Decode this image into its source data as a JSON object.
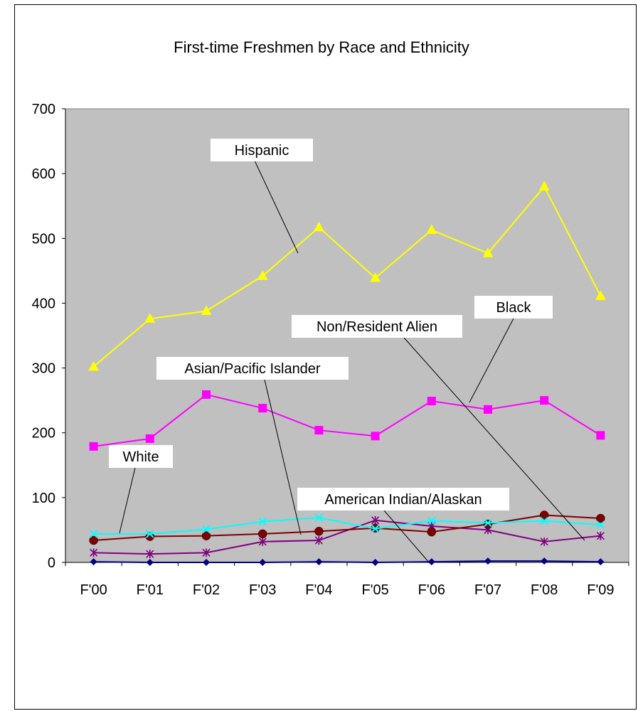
{
  "chart_data": {
    "type": "line",
    "title": "First-time Freshmen by Race and Ethnicity",
    "xlabel": "",
    "ylabel": "",
    "ylim": [
      0,
      700
    ],
    "yticks": [
      "0",
      "100",
      "200",
      "300",
      "400",
      "500",
      "600",
      "700"
    ],
    "categories": [
      "F'00",
      "F'01",
      "F'02",
      "F'03",
      "F'04",
      "F'05",
      "F'06",
      "F'07",
      "F'08",
      "F'09"
    ],
    "grid": false,
    "plot_background": "#c0c0c0",
    "series": [
      {
        "name": "Hispanic",
        "color": "#ffff00",
        "marker": "triangle",
        "values": [
          302,
          376,
          388,
          442,
          517,
          439,
          513,
          477,
          580,
          411
        ]
      },
      {
        "name": "Black",
        "color": "#ff00ff",
        "marker": "square",
        "values": [
          179,
          191,
          259,
          238,
          204,
          195,
          249,
          236,
          250,
          196
        ]
      },
      {
        "name": "White",
        "color": "#00ffff",
        "marker": "x",
        "values": [
          44,
          44,
          51,
          63,
          69,
          52,
          64,
          61,
          64,
          58
        ]
      },
      {
        "name": "Asian/Pacific Islander",
        "color": "#800000",
        "marker": "circle",
        "values": [
          34,
          40,
          41,
          44,
          48,
          53,
          47,
          59,
          73,
          68
        ]
      },
      {
        "name": "Non/Resident Alien",
        "color": "#800080",
        "marker": "star",
        "values": [
          15,
          13,
          15,
          32,
          34,
          65,
          56,
          50,
          32,
          41
        ]
      },
      {
        "name": "American Indian/Alaskan",
        "color": "#000080",
        "marker": "diamond",
        "values": [
          1,
          0,
          0,
          0,
          1,
          0,
          1,
          2,
          2,
          1
        ]
      }
    ],
    "annotations": [
      {
        "text": "Hispanic"
      },
      {
        "text": "Black"
      },
      {
        "text": "Non/Resident Alien"
      },
      {
        "text": "Asian/Pacific Islander"
      },
      {
        "text": "White"
      },
      {
        "text": "American Indian/Alaskan"
      }
    ]
  }
}
